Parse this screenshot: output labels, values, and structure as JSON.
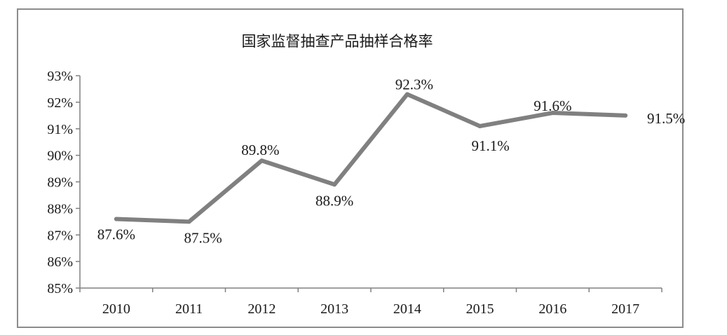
{
  "chart_data": {
    "type": "line",
    "title": "国家监督抽查产品抽样合格率",
    "xlabel": "",
    "ylabel": "",
    "categories": [
      "2010",
      "2011",
      "2012",
      "2013",
      "2014",
      "2015",
      "2016",
      "2017"
    ],
    "series": [
      {
        "values": [
          87.6,
          87.5,
          89.8,
          88.9,
          92.3,
          91.1,
          91.6,
          91.5
        ],
        "data_labels": [
          "87.6%",
          "87.5%",
          "89.8%",
          "88.9%",
          "92.3%",
          "91.1%",
          "91.6%",
          "91.5%"
        ],
        "color": "#808080"
      }
    ],
    "ylim": [
      85,
      93
    ],
    "yticks": [
      85,
      86,
      87,
      88,
      89,
      90,
      91,
      92,
      93
    ],
    "ytick_labels": [
      "85%",
      "86%",
      "87%",
      "88%",
      "89%",
      "90%",
      "91%",
      "92%",
      "93%"
    ],
    "grid": false,
    "legend": "none"
  },
  "colors": {
    "line": "#808080",
    "frame": "#8c8c8c",
    "axis": "#808080",
    "text": "#1a1a1a"
  }
}
